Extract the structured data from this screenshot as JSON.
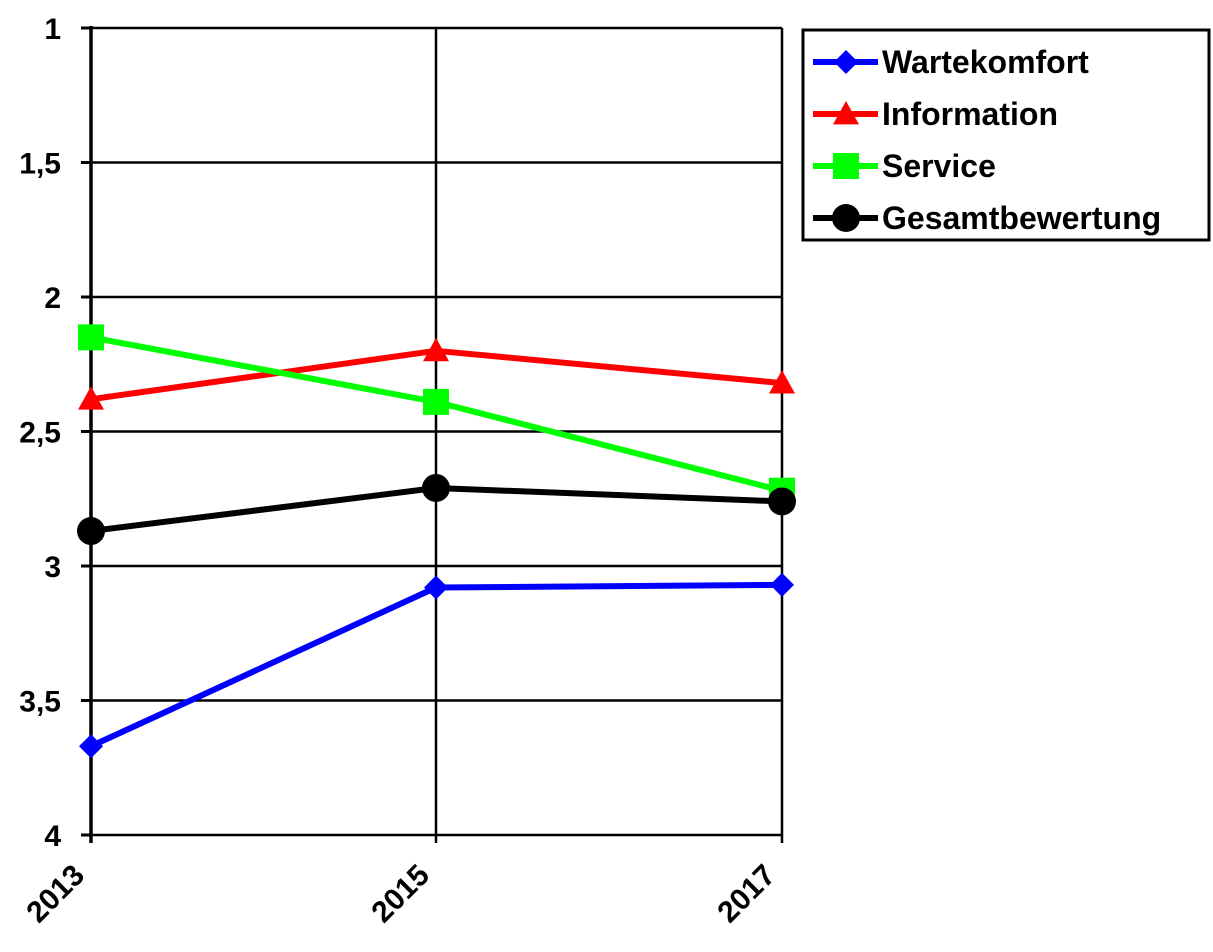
{
  "chart_data": {
    "type": "line",
    "x": [
      "2013",
      "2015",
      "2017"
    ],
    "y_axis": {
      "ylim": [
        1,
        4
      ],
      "inverted": true,
      "ticks": [
        1,
        1.5,
        2,
        2.5,
        3,
        3.5,
        4
      ],
      "tick_labels": [
        "1",
        "1,5",
        "2",
        "2,5",
        "3",
        "3,5",
        "4"
      ]
    },
    "grid": {
      "horizontal": true,
      "vertical": true
    },
    "legend_position": "top-right",
    "series": [
      {
        "name": "Wartekomfort",
        "color": "#0000ff",
        "marker": "diamond",
        "values": [
          3.67,
          3.08,
          3.07
        ]
      },
      {
        "name": "Information",
        "color": "#ff0000",
        "marker": "triangle",
        "values": [
          2.38,
          2.2,
          2.32
        ]
      },
      {
        "name": "Service",
        "color": "#00ff00",
        "marker": "square",
        "values": [
          2.15,
          2.39,
          2.72
        ]
      },
      {
        "name": "Gesamtbewertung",
        "color": "#000000",
        "marker": "circle",
        "values": [
          2.87,
          2.71,
          2.76
        ]
      }
    ]
  }
}
